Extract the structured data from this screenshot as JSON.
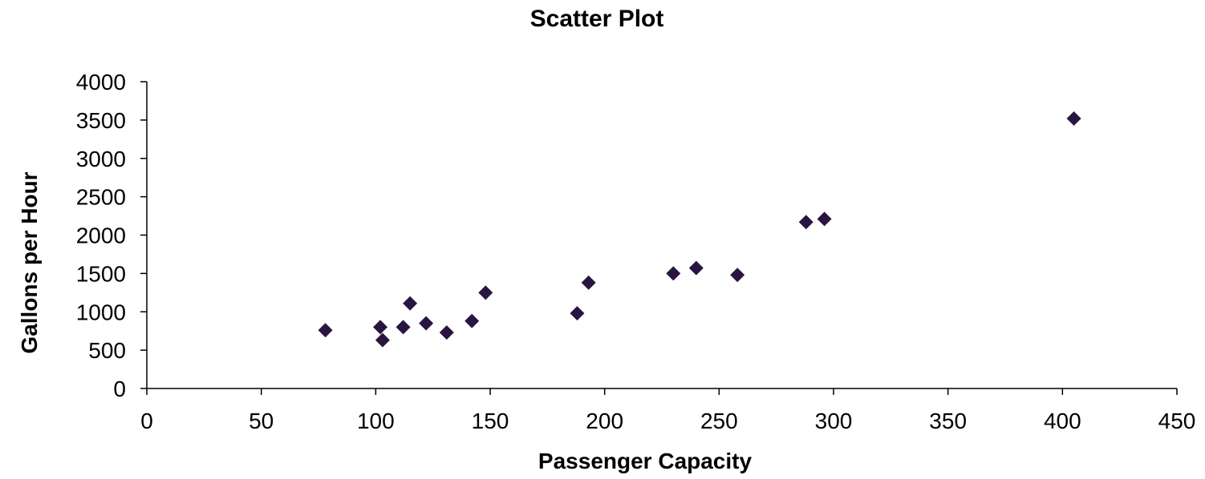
{
  "chart_data": {
    "type": "scatter",
    "title": "Scatter Plot",
    "xlabel": "Passenger Capacity",
    "ylabel": "Gallons per Hour",
    "xlim": [
      0,
      450
    ],
    "ylim": [
      0,
      4000
    ],
    "x_ticks": [
      0,
      50,
      100,
      150,
      200,
      250,
      300,
      350,
      400,
      450
    ],
    "y_ticks": [
      0,
      500,
      1000,
      1500,
      2000,
      2500,
      3000,
      3500,
      4000
    ],
    "grid": false,
    "legend": "none",
    "marker": "diamond",
    "marker_color": "#2a1540",
    "points": [
      {
        "x": 78,
        "y": 760
      },
      {
        "x": 102,
        "y": 800
      },
      {
        "x": 103,
        "y": 630
      },
      {
        "x": 112,
        "y": 800
      },
      {
        "x": 115,
        "y": 1110
      },
      {
        "x": 122,
        "y": 850
      },
      {
        "x": 131,
        "y": 730
      },
      {
        "x": 142,
        "y": 880
      },
      {
        "x": 148,
        "y": 1250
      },
      {
        "x": 188,
        "y": 980
      },
      {
        "x": 193,
        "y": 1380
      },
      {
        "x": 230,
        "y": 1500
      },
      {
        "x": 240,
        "y": 1570
      },
      {
        "x": 258,
        "y": 1480
      },
      {
        "x": 288,
        "y": 2170
      },
      {
        "x": 296,
        "y": 2210
      },
      {
        "x": 405,
        "y": 3520
      }
    ]
  }
}
